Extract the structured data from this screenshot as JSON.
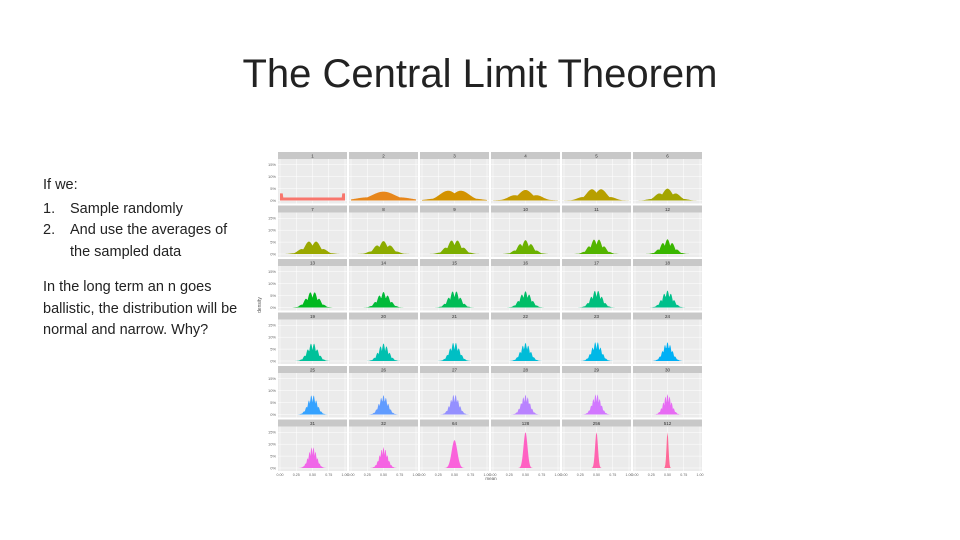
{
  "title": "The Central Limit Theorem",
  "intro": "If we:",
  "steps": [
    {
      "num": "1.",
      "text": "Sample randomly"
    },
    {
      "num": "2.",
      "text": "And use the averages of the sampled data"
    }
  ],
  "conclusion": "In the long term an n goes ballistic, the distribution will be normal and narrow. Why?",
  "chart_data": {
    "type": "area",
    "ylabel": "density",
    "xlabel": "mean",
    "y_ticks": [
      "0%",
      "5%",
      "10%",
      "15%"
    ],
    "x_ticks": [
      "0.00",
      "0.25",
      "0.50",
      "0.75",
      "1.00"
    ],
    "facet_grid": {
      "rows": 6,
      "cols": 6
    },
    "panels": [
      {
        "label": "1",
        "color": "#f8766d",
        "peaks": 1,
        "spread": 1.0
      },
      {
        "label": "2",
        "color": "#e7861b",
        "peaks": 2,
        "spread": 0.5
      },
      {
        "label": "3",
        "color": "#d39200",
        "peaks": 3,
        "spread": 0.5
      },
      {
        "label": "4",
        "color": "#c49a00",
        "peaks": 4,
        "spread": 0.5
      },
      {
        "label": "5",
        "color": "#b79f00",
        "peaks": 5,
        "spread": 0.45
      },
      {
        "label": "6",
        "color": "#a3a500",
        "peaks": 6,
        "spread": 0.45
      },
      {
        "label": "7",
        "color": "#9aa800",
        "peaks": 7,
        "spread": 0.42
      },
      {
        "label": "8",
        "color": "#8dab00",
        "peaks": 8,
        "spread": 0.4
      },
      {
        "label": "9",
        "color": "#7cae00",
        "peaks": 9,
        "spread": 0.38
      },
      {
        "label": "10",
        "color": "#6bb100",
        "peaks": 10,
        "spread": 0.36
      },
      {
        "label": "11",
        "color": "#53b400",
        "peaks": 11,
        "spread": 0.34
      },
      {
        "label": "12",
        "color": "#39b600",
        "peaks": 12,
        "spread": 0.33
      },
      {
        "label": "13",
        "color": "#00b81f",
        "peaks": 13,
        "spread": 0.32
      },
      {
        "label": "14",
        "color": "#00ba38",
        "peaks": 14,
        "spread": 0.31
      },
      {
        "label": "15",
        "color": "#00bc56",
        "peaks": 15,
        "spread": 0.3
      },
      {
        "label": "16",
        "color": "#00be67",
        "peaks": 16,
        "spread": 0.29
      },
      {
        "label": "17",
        "color": "#00bf7d",
        "peaks": 17,
        "spread": 0.28
      },
      {
        "label": "18",
        "color": "#00c08b",
        "peaks": 18,
        "spread": 0.27
      },
      {
        "label": "19",
        "color": "#00c19a",
        "peaks": 19,
        "spread": 0.27
      },
      {
        "label": "20",
        "color": "#00c0af",
        "peaks": 20,
        "spread": 0.26
      },
      {
        "label": "21",
        "color": "#00bfc4",
        "peaks": 21,
        "spread": 0.26
      },
      {
        "label": "22",
        "color": "#00bcd8",
        "peaks": 22,
        "spread": 0.25
      },
      {
        "label": "23",
        "color": "#00b8e7",
        "peaks": 23,
        "spread": 0.25
      },
      {
        "label": "24",
        "color": "#00b0f6",
        "peaks": 24,
        "spread": 0.24
      },
      {
        "label": "25",
        "color": "#35a2ff",
        "peaks": 25,
        "spread": 0.24
      },
      {
        "label": "26",
        "color": "#619cff",
        "peaks": 26,
        "spread": 0.23
      },
      {
        "label": "27",
        "color": "#9590ff",
        "peaks": 27,
        "spread": 0.23
      },
      {
        "label": "28",
        "color": "#b983ff",
        "peaks": 28,
        "spread": 0.22
      },
      {
        "label": "29",
        "color": "#d277ff",
        "peaks": 29,
        "spread": 0.22
      },
      {
        "label": "30",
        "color": "#e76bf3",
        "peaks": 30,
        "spread": 0.21
      },
      {
        "label": "31",
        "color": "#f066e8",
        "peaks": 31,
        "spread": 0.21
      },
      {
        "label": "32",
        "color": "#f564e3",
        "peaks": 32,
        "spread": 0.2
      },
      {
        "label": "64",
        "color": "#fa62db",
        "peaks": 64,
        "spread": 0.15
      },
      {
        "label": "128",
        "color": "#ff61c3",
        "peaks": 128,
        "spread": 0.1
      },
      {
        "label": "256",
        "color": "#ff64b0",
        "peaks": 256,
        "spread": 0.07
      },
      {
        "label": "512",
        "color": "#ff6a98",
        "peaks": 512,
        "spread": 0.05
      }
    ]
  }
}
